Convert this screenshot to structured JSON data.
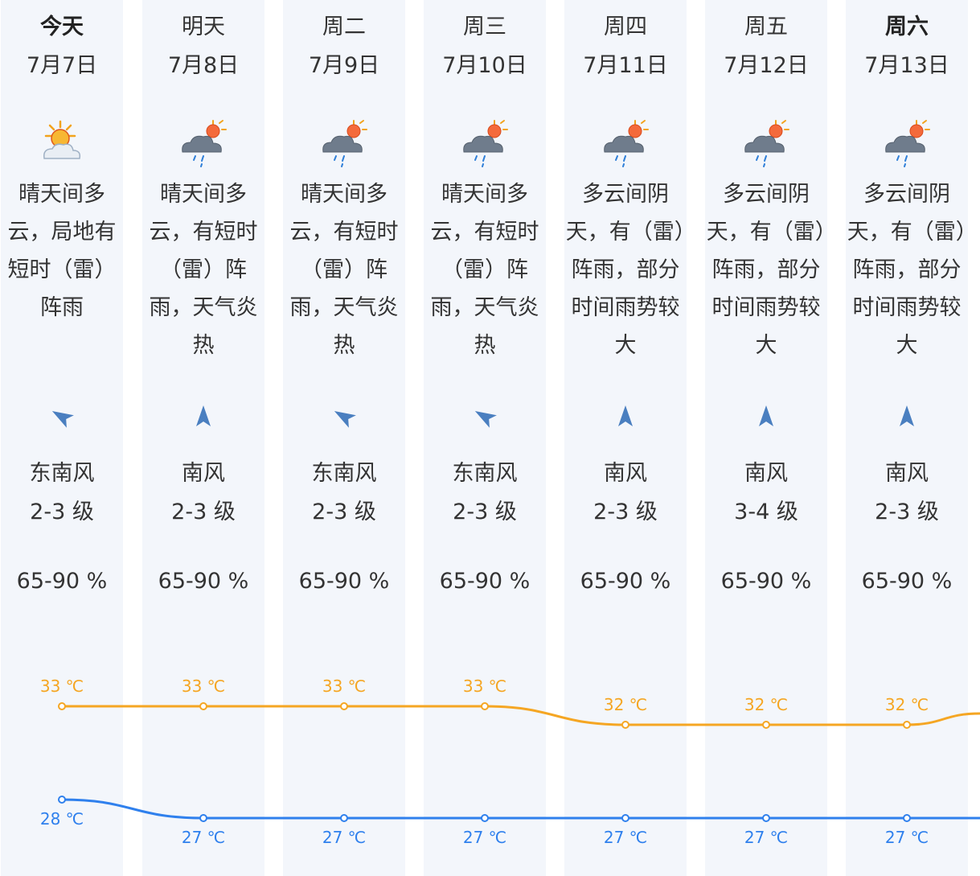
{
  "days": [
    {
      "weekday": "今天",
      "date": "7月7日",
      "weather_icon": "sunny-partly-cloudy-icon",
      "description": "晴天间多云，局地有短时（雷）阵雨",
      "wind_direction": "东南风",
      "wind_level": "2-3 级",
      "wind_icon": "wind-arrow-southeast-icon",
      "humidity": "65-90 %",
      "high": "33 ℃",
      "low": "28 ℃"
    },
    {
      "weekday": "明天",
      "date": "7月8日",
      "weather_icon": "cloud-sun-rain-icon",
      "description": "晴天间多云，有短时（雷）阵雨，天气炎热",
      "wind_direction": "南风",
      "wind_level": "2-3 级",
      "wind_icon": "wind-arrow-south-icon",
      "humidity": "65-90 %",
      "high": "33 ℃",
      "low": "27 ℃"
    },
    {
      "weekday": "周二",
      "date": "7月9日",
      "weather_icon": "cloud-sun-rain-icon",
      "description": "晴天间多云，有短时（雷）阵雨，天气炎热",
      "wind_direction": "东南风",
      "wind_level": "2-3 级",
      "wind_icon": "wind-arrow-southeast-icon",
      "humidity": "65-90 %",
      "high": "33 ℃",
      "low": "27 ℃"
    },
    {
      "weekday": "周三",
      "date": "7月10日",
      "weather_icon": "cloud-sun-rain-icon",
      "description": "晴天间多云，有短时（雷）阵雨，天气炎热",
      "wind_direction": "东南风",
      "wind_level": "2-3 级",
      "wind_icon": "wind-arrow-southeast-icon",
      "humidity": "65-90 %",
      "high": "33 ℃",
      "low": "27 ℃"
    },
    {
      "weekday": "周四",
      "date": "7月11日",
      "weather_icon": "cloud-sun-rain-icon",
      "description": "多云间阴天，有（雷）阵雨，部分时间雨势较大",
      "wind_direction": "南风",
      "wind_level": "2-3 级",
      "wind_icon": "wind-arrow-south-icon",
      "humidity": "65-90 %",
      "high": "32 ℃",
      "low": "27 ℃"
    },
    {
      "weekday": "周五",
      "date": "7月12日",
      "weather_icon": "cloud-sun-rain-icon",
      "description": "多云间阴天，有（雷）阵雨，部分时间雨势较大",
      "wind_direction": "南风",
      "wind_level": "3-4 级",
      "wind_icon": "wind-arrow-south-icon",
      "humidity": "65-90 %",
      "high": "32 ℃",
      "low": "27 ℃"
    },
    {
      "weekday": "周六",
      "date": "7月13日",
      "weather_icon": "cloud-sun-rain-icon",
      "description": "多云间阴天，有（雷）阵雨，部分时间雨势较大",
      "wind_direction": "南风",
      "wind_level": "2-3 级",
      "wind_icon": "wind-arrow-south-icon",
      "humidity": "65-90 %",
      "high": "32 ℃",
      "low": "27 ℃"
    }
  ],
  "temperature": {
    "high_values": [
      33,
      33,
      33,
      33,
      32,
      32,
      32
    ],
    "low_values": [
      28,
      27,
      27,
      27,
      27,
      27,
      27
    ],
    "high_color": "#f5a623",
    "low_color": "#2f80ed"
  },
  "colors": {
    "column_background": "#f3f6fb",
    "text": "#333333",
    "wind_arrow": "#4a7fc0"
  }
}
